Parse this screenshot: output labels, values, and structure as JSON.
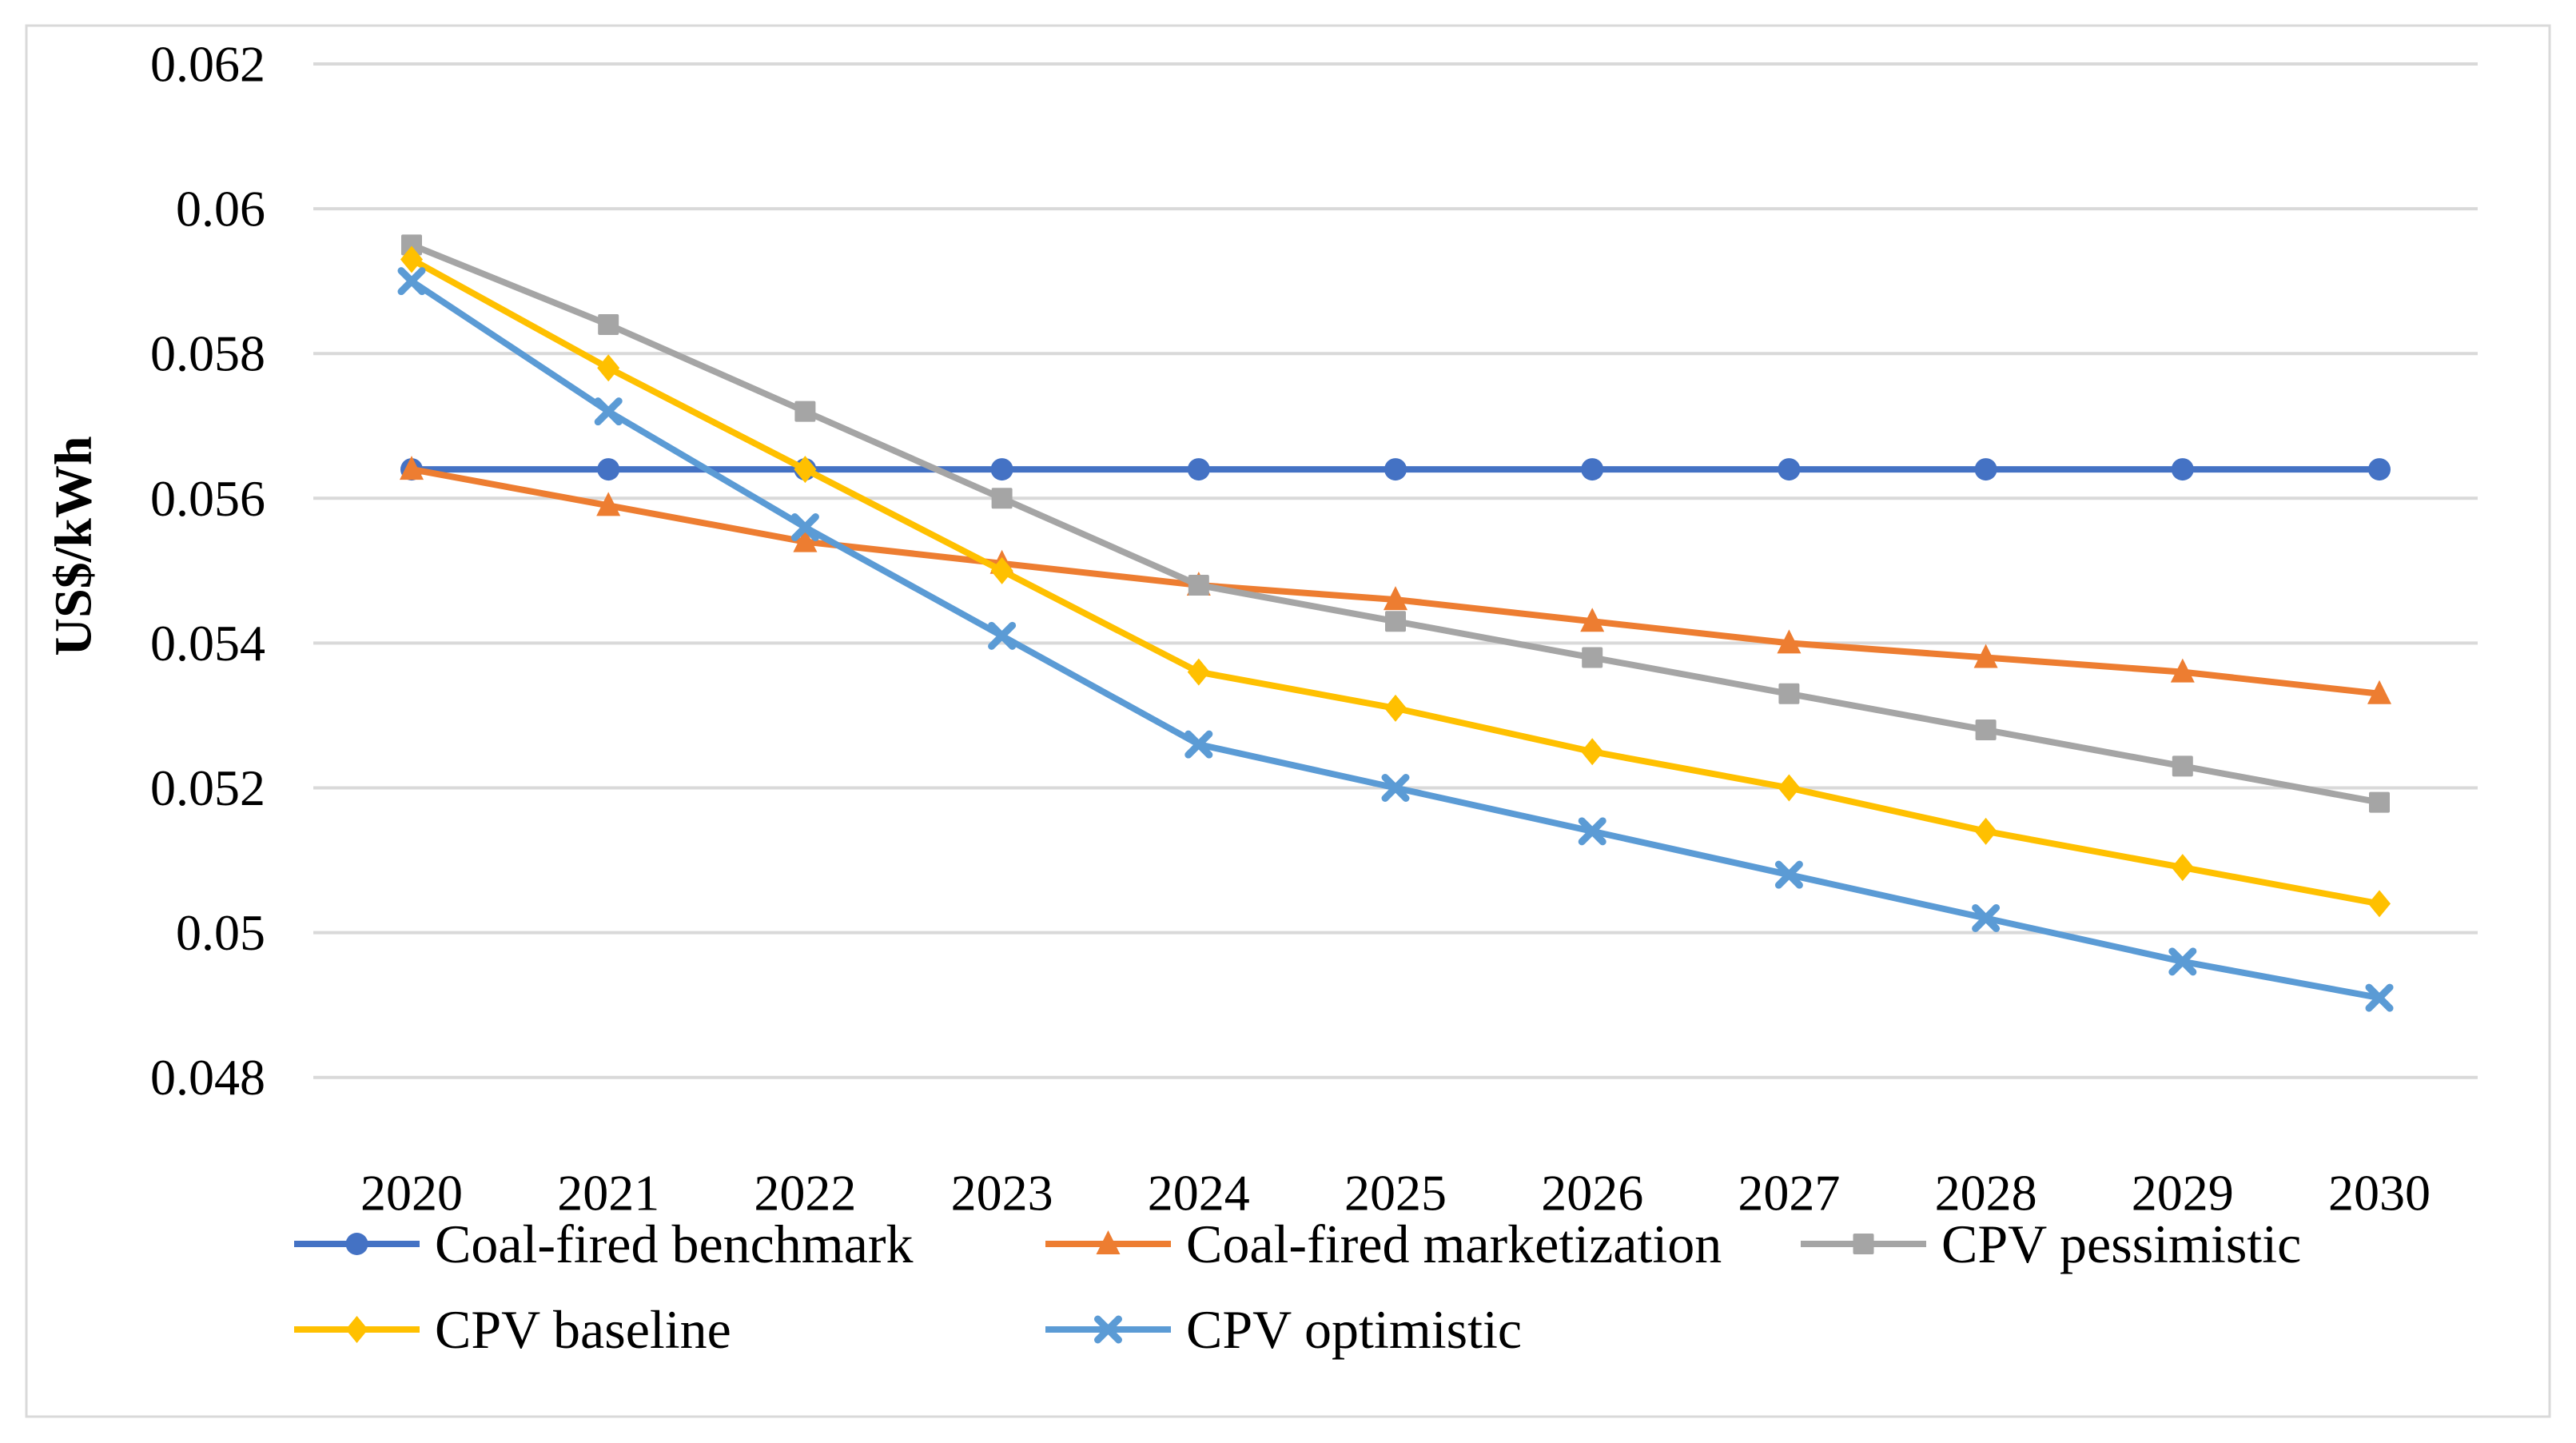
{
  "figure": {
    "background_color": "#ffffff",
    "border_color": "#d9d9d9",
    "gridline_color": "#d9d9d9",
    "text_color": "#000000"
  },
  "chart_data": {
    "type": "line",
    "title": "",
    "xlabel": "",
    "ylabel": "US$/kWh",
    "x": [
      2020,
      2021,
      2022,
      2023,
      2024,
      2025,
      2026,
      2027,
      2028,
      2029,
      2030
    ],
    "x_tick_labels": [
      "2020",
      "2021",
      "2022",
      "2023",
      "2024",
      "2025",
      "2026",
      "2027",
      "2028",
      "2029",
      "2030"
    ],
    "y_tick_labels": [
      "0.062",
      "0.06",
      "0.058",
      "0.056",
      "0.054",
      "0.052",
      "0.05",
      "0.048"
    ],
    "y_tick_values": [
      0.062,
      0.06,
      0.058,
      0.056,
      0.054,
      0.052,
      0.05,
      0.048
    ],
    "ylim": [
      0.048,
      0.062
    ],
    "y_gridline_step": 0.002,
    "grid": "horizontal",
    "legend_position": "bottom",
    "series": [
      {
        "name": "Coal-fired benchmark",
        "color": "#4472C4",
        "marker": "circle",
        "values": [
          0.0564,
          0.0564,
          0.0564,
          0.0564,
          0.0564,
          0.0564,
          0.0564,
          0.0564,
          0.0564,
          0.0564,
          0.0564
        ]
      },
      {
        "name": "Coal-fired marketization",
        "color": "#ED7D31",
        "marker": "triangle",
        "values": [
          0.0564,
          0.0559,
          0.0554,
          0.0551,
          0.0548,
          0.0546,
          0.0543,
          0.054,
          0.0538,
          0.0536,
          0.0533
        ]
      },
      {
        "name": "CPV pessimistic",
        "color": "#A5A5A5",
        "marker": "square",
        "values": [
          0.0595,
          0.0584,
          0.0572,
          0.056,
          0.0548,
          0.0543,
          0.0538,
          0.0533,
          0.0528,
          0.0523,
          0.0518
        ]
      },
      {
        "name": "CPV baseline",
        "color": "#FFC000",
        "marker": "diamond",
        "values": [
          0.0593,
          0.0578,
          0.0564,
          0.055,
          0.0536,
          0.0531,
          0.0525,
          0.052,
          0.0514,
          0.0509,
          0.0504
        ]
      },
      {
        "name": "CPV optimistic",
        "color": "#5B9BD5",
        "marker": "x",
        "values": [
          0.059,
          0.0572,
          0.0556,
          0.0541,
          0.0526,
          0.052,
          0.0514,
          0.0508,
          0.0502,
          0.0496,
          0.0491
        ]
      }
    ]
  }
}
